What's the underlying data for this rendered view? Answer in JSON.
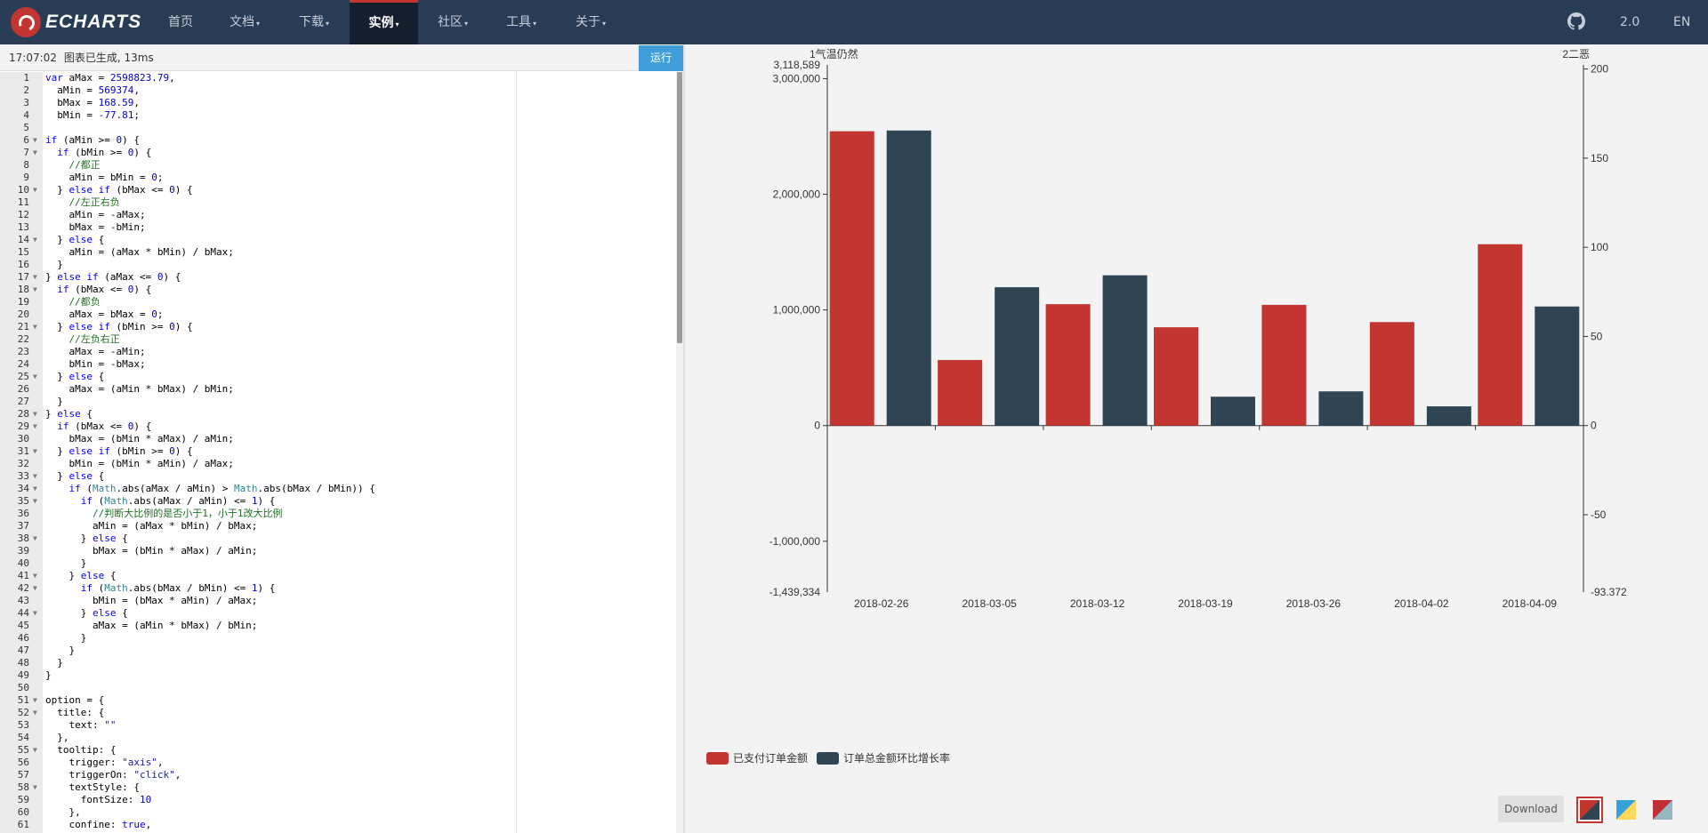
{
  "navbar": {
    "logo_text": "ECHARTS",
    "items": [
      {
        "label": "首页",
        "caret": ""
      },
      {
        "label": "文档",
        "caret": "▾"
      },
      {
        "label": "下载",
        "caret": "▾"
      },
      {
        "label": "实例",
        "caret": "▾"
      },
      {
        "label": "社区",
        "caret": "▾"
      },
      {
        "label": "工具",
        "caret": "▾"
      },
      {
        "label": "关于",
        "caret": "▾"
      }
    ],
    "version": "2.0",
    "language": "EN",
    "github_icon": "github-icon"
  },
  "code_panel": {
    "time": "17:07:02",
    "status": "图表已生成, 13ms",
    "run_label": "运行",
    "lines": [
      "var aMax = 2598823.79,",
      "  aMin = 569374,",
      "  bMax = 168.59,",
      "  bMin = -77.81;",
      "",
      "if (aMin >= 0) {",
      "  if (bMin >= 0) {",
      "    //都正",
      "    aMin = bMin = 0;",
      "  } else if (bMax <= 0) {",
      "    //左正右负",
      "    aMin = -aMax;",
      "    bMax = -bMin;",
      "  } else {",
      "    aMin = (aMax * bMin) / bMax;",
      "  }",
      "} else if (aMax <= 0) {",
      "  if (bMax <= 0) {",
      "    //都负",
      "    aMax = bMax = 0;",
      "  } else if (bMin >= 0) {",
      "    //左负右正",
      "    aMax = -aMin;",
      "    bMin = -bMax;",
      "  } else {",
      "    aMax = (aMin * bMax) / bMin;",
      "  }",
      "} else {",
      "  if (bMax <= 0) {",
      "    bMax = (bMin * aMax) / aMin;",
      "  } else if (bMin >= 0) {",
      "    bMin = (bMin * aMin) / aMax;",
      "  } else {",
      "    if (Math.abs(aMax / aMin) > Math.abs(bMax / bMin)) {",
      "      if (Math.abs(aMax / aMin) <= 1) {",
      "        //判断大比例的是否小于1，小于1改大比例",
      "        aMin = (aMax * bMin) / bMax;",
      "      } else {",
      "        bMax = (bMin * aMax) / aMin;",
      "      }",
      "    } else {",
      "      if (Math.abs(bMax / bMin) <= 1) {",
      "        bMin = (bMax * aMin) / aMax;",
      "      } else {",
      "        aMax = (aMin * bMax) / bMin;",
      "      }",
      "    }",
      "  }",
      "}",
      "",
      "option = {",
      "  title: {",
      "    text: \"\"",
      "  },",
      "  tooltip: {",
      "    trigger: \"axis\",",
      "    triggerOn: \"click\",",
      "    textStyle: {",
      "      fontSize: 10",
      "    },",
      "    confine: true,"
    ],
    "fold_lines": [
      6,
      7,
      10,
      14,
      17,
      18,
      21,
      25,
      28,
      29,
      31,
      33,
      34,
      35,
      38,
      41,
      42,
      44,
      51,
      52,
      55,
      58
    ]
  },
  "chart_data": {
    "type": "bar",
    "categories": [
      "2018-02-26",
      "2018-03-05",
      "2018-03-12",
      "2018-03-19",
      "2018-03-26",
      "2018-04-02",
      "2018-04-09"
    ],
    "series": [
      {
        "name": "已支付订单金额",
        "axis": "left",
        "color": "#c23531",
        "values": [
          2545000,
          567000,
          1050000,
          850000,
          1044000,
          895000,
          1568000
        ]
      },
      {
        "name": "订单总金额环比增长率",
        "axis": "right",
        "color": "#2f4554",
        "values": [
          165.5,
          77.6,
          84.3,
          16.2,
          19.2,
          10.8,
          66.8
        ]
      }
    ],
    "y_left": {
      "name": "1气温仍然",
      "min": -1439334,
      "max": 3118589,
      "ticks": [
        3000000,
        2000000,
        1000000,
        0,
        -1000000
      ],
      "min_label": "-1,439,334",
      "max_label": "3,118,589",
      "tick_labels": [
        "3,000,000",
        "2,000,000",
        "1,000,000",
        "0",
        "-1,000,000"
      ]
    },
    "y_right": {
      "name": "2二恶",
      "min": -93.372,
      "max": 202.3,
      "ticks": [
        200,
        150,
        100,
        50,
        0,
        -50
      ],
      "min_label": "-93.372",
      "tick_labels": [
        "200",
        "150",
        "100",
        "50",
        "0",
        "-50"
      ]
    },
    "legend_position": "bottom-left",
    "grid": false,
    "title": ""
  },
  "chart_toolbar": {
    "download_label": "Download",
    "themes": [
      {
        "name": "default-theme",
        "colors": [
          "#c23531",
          "#2f4554"
        ],
        "selected": true
      },
      {
        "name": "light-theme",
        "colors": [
          "#37a2da",
          "#ffd85c"
        ],
        "selected": false
      },
      {
        "name": "dark-theme",
        "colors": [
          "#c12e34",
          "#94b7c1"
        ],
        "selected": false
      }
    ]
  }
}
